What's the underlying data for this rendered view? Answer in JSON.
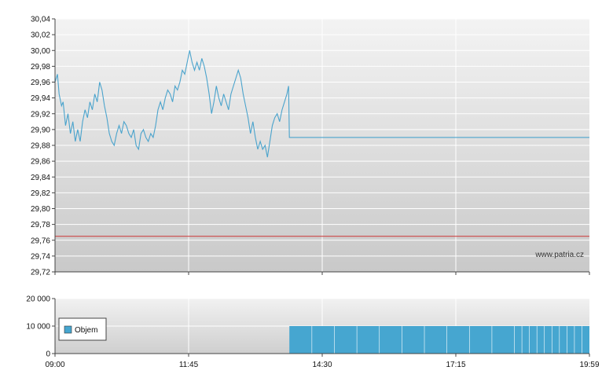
{
  "watermark": "www.patria.cz",
  "chart_data": [
    {
      "type": "line",
      "panel": "price",
      "ylim": [
        29.72,
        30.04
      ],
      "yticks": [
        "30,04",
        "30,02",
        "30,00",
        "29,98",
        "29,96",
        "29,94",
        "29,92",
        "29,90",
        "29,88",
        "29,86",
        "29,84",
        "29,82",
        "29,80",
        "29,78",
        "29,76",
        "29,74",
        "29,72"
      ],
      "x_range_minutes": [
        0,
        659
      ],
      "x_range_labels": [
        "09:00",
        "19:59"
      ],
      "grid": true,
      "reference_line": {
        "value": 29.765,
        "color": "#cc3333"
      },
      "series": [
        {
          "color": "#4aa3cc",
          "points": [
            [
              0,
              29.96
            ],
            [
              3,
              29.97
            ],
            [
              5,
              29.945
            ],
            [
              8,
              29.93
            ],
            [
              10,
              29.935
            ],
            [
              13,
              29.905
            ],
            [
              16,
              29.92
            ],
            [
              19,
              29.895
            ],
            [
              22,
              29.91
            ],
            [
              25,
              29.885
            ],
            [
              28,
              29.9
            ],
            [
              31,
              29.885
            ],
            [
              34,
              29.91
            ],
            [
              37,
              29.925
            ],
            [
              40,
              29.915
            ],
            [
              43,
              29.935
            ],
            [
              46,
              29.925
            ],
            [
              49,
              29.945
            ],
            [
              52,
              29.935
            ],
            [
              55,
              29.96
            ],
            [
              58,
              29.95
            ],
            [
              61,
              29.93
            ],
            [
              64,
              29.915
            ],
            [
              67,
              29.895
            ],
            [
              70,
              29.885
            ],
            [
              73,
              29.88
            ],
            [
              76,
              29.895
            ],
            [
              79,
              29.905
            ],
            [
              82,
              29.895
            ],
            [
              85,
              29.91
            ],
            [
              88,
              29.905
            ],
            [
              91,
              29.895
            ],
            [
              94,
              29.89
            ],
            [
              97,
              29.9
            ],
            [
              100,
              29.88
            ],
            [
              103,
              29.875
            ],
            [
              106,
              29.895
            ],
            [
              109,
              29.9
            ],
            [
              112,
              29.89
            ],
            [
              115,
              29.885
            ],
            [
              118,
              29.895
            ],
            [
              121,
              29.89
            ],
            [
              124,
              29.905
            ],
            [
              127,
              29.925
            ],
            [
              130,
              29.935
            ],
            [
              133,
              29.925
            ],
            [
              136,
              29.94
            ],
            [
              139,
              29.95
            ],
            [
              142,
              29.945
            ],
            [
              145,
              29.935
            ],
            [
              148,
              29.955
            ],
            [
              151,
              29.95
            ],
            [
              154,
              29.96
            ],
            [
              157,
              29.975
            ],
            [
              160,
              29.97
            ],
            [
              163,
              29.985
            ],
            [
              166,
              30.0
            ],
            [
              169,
              29.985
            ],
            [
              172,
              29.975
            ],
            [
              175,
              29.985
            ],
            [
              178,
              29.975
            ],
            [
              181,
              29.99
            ],
            [
              184,
              29.98
            ],
            [
              187,
              29.965
            ],
            [
              190,
              29.945
            ],
            [
              193,
              29.92
            ],
            [
              196,
              29.935
            ],
            [
              199,
              29.955
            ],
            [
              202,
              29.94
            ],
            [
              205,
              29.93
            ],
            [
              208,
              29.945
            ],
            [
              211,
              29.935
            ],
            [
              214,
              29.925
            ],
            [
              217,
              29.945
            ],
            [
              220,
              29.955
            ],
            [
              223,
              29.965
            ],
            [
              226,
              29.975
            ],
            [
              229,
              29.965
            ],
            [
              232,
              29.945
            ],
            [
              235,
              29.93
            ],
            [
              238,
              29.915
            ],
            [
              241,
              29.895
            ],
            [
              244,
              29.91
            ],
            [
              247,
              29.89
            ],
            [
              250,
              29.875
            ],
            [
              253,
              29.885
            ],
            [
              256,
              29.875
            ],
            [
              259,
              29.88
            ],
            [
              262,
              29.865
            ],
            [
              265,
              29.885
            ],
            [
              268,
              29.905
            ],
            [
              271,
              29.915
            ],
            [
              274,
              29.92
            ],
            [
              277,
              29.91
            ],
            [
              280,
              29.925
            ],
            [
              283,
              29.935
            ],
            [
              286,
              29.945
            ],
            [
              288,
              29.955
            ],
            [
              289,
              29.89
            ],
            [
              659,
              29.89
            ]
          ]
        }
      ]
    },
    {
      "type": "bar",
      "panel": "volume",
      "ylim": [
        0,
        20000
      ],
      "yticks": [
        "20 000",
        "10 000",
        "0"
      ],
      "xticks": [
        "09:00",
        "11:45",
        "14:30",
        "17:15",
        "19:59"
      ],
      "legend": {
        "label": "Objem",
        "position": "bottom-left",
        "color": "#46a6d0"
      },
      "grid": true,
      "bar_color": "#46a6d0",
      "bar_from_minute": 289,
      "bar_to_minute": 659,
      "bar_value": 10000
    }
  ]
}
